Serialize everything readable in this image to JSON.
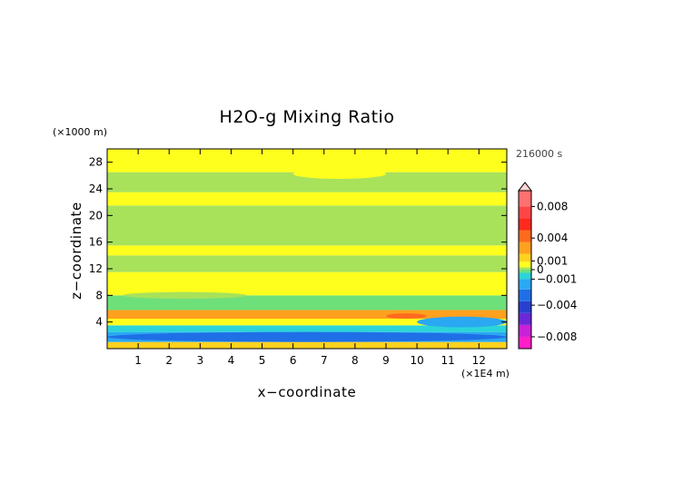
{
  "chart_data": {
    "type": "heatmap",
    "title": "H2O-g Mixing Ratio",
    "xlabel": "x−coordinate",
    "ylabel": "z−coordinate",
    "x_unit_label": "(×1E4 m)",
    "y_unit_label": "(×1000 m)",
    "time_label": "216000 s",
    "xlim": [
      0,
      12.9
    ],
    "ylim": [
      0,
      30
    ],
    "xticks": [
      1,
      2,
      3,
      4,
      5,
      6,
      7,
      8,
      9,
      10,
      11,
      12
    ],
    "yticks": [
      4,
      8,
      12,
      16,
      20,
      24,
      28
    ],
    "grid": false,
    "colorbar": {
      "position": "right",
      "range": [
        -0.01,
        0.01
      ],
      "labels": [
        {
          "text": "0.008",
          "value": 0.008
        },
        {
          "text": "0.004",
          "value": 0.004
        },
        {
          "text": "0.001",
          "value": 0.0011
        },
        {
          "text": "0",
          "value": 0.0
        },
        {
          "text": "−0.001",
          "value": -0.0012
        },
        {
          "text": "−0.004",
          "value": -0.0045
        },
        {
          "text": "−0.008",
          "value": -0.0085
        }
      ],
      "color_stops": [
        {
          "value": -0.01,
          "color": "#ff1ec8"
        },
        {
          "value": -0.0085,
          "color": "#c821d6"
        },
        {
          "value": -0.007,
          "color": "#6a28d8"
        },
        {
          "value": -0.0055,
          "color": "#2a3fd0"
        },
        {
          "value": -0.004,
          "color": "#1f6fe6"
        },
        {
          "value": -0.0025,
          "color": "#2aa8f2"
        },
        {
          "value": -0.0012,
          "color": "#2ad4d8"
        },
        {
          "value": -0.0004,
          "color": "#6ee07a"
        },
        {
          "value": 0.0,
          "color": "#a8e25a"
        },
        {
          "value": 0.0003,
          "color": "#ffff1e"
        },
        {
          "value": 0.001,
          "color": "#ffd21e"
        },
        {
          "value": 0.002,
          "color": "#ffa01e"
        },
        {
          "value": 0.0035,
          "color": "#ff6a1e"
        },
        {
          "value": 0.005,
          "color": "#ff2a1e"
        },
        {
          "value": 0.0065,
          "color": "#ff4646"
        },
        {
          "value": 0.008,
          "color": "#ff7070"
        },
        {
          "value": 0.01,
          "color": "#ffa8a8"
        }
      ]
    },
    "bands": [
      {
        "z_range": [
          0,
          1.0
        ],
        "value": 0.0011,
        "color": "#ffd21e"
      },
      {
        "z_range": [
          1.0,
          2.5
        ],
        "value": -0.0025,
        "color": "#2aa8f2"
      },
      {
        "z_range": [
          2.5,
          3.5
        ],
        "value": -0.0012,
        "color": "#2ad4d8"
      },
      {
        "z_range": [
          3.5,
          4.5
        ],
        "value": 0.0005,
        "color": "#ffff1e"
      },
      {
        "z_range": [
          4.5,
          5.8
        ],
        "value": 0.002,
        "color": "#ffa01e"
      },
      {
        "z_range": [
          5.8,
          8.0
        ],
        "value": -0.0004,
        "color": "#6ee07a"
      },
      {
        "z_range": [
          8.0,
          11.5
        ],
        "value": 0.0003,
        "color": "#ffff1e"
      },
      {
        "z_range": [
          11.5,
          14.0
        ],
        "value": 0.0,
        "color": "#a8e25a"
      },
      {
        "z_range": [
          14.0,
          15.5
        ],
        "value": 0.0003,
        "color": "#ffff1e"
      },
      {
        "z_range": [
          15.5,
          21.5
        ],
        "value": 0.0,
        "color": "#a8e25a"
      },
      {
        "z_range": [
          21.5,
          23.5
        ],
        "value": 0.0003,
        "color": "#ffff1e"
      },
      {
        "z_range": [
          23.5,
          26.5
        ],
        "value": 0.0,
        "color": "#a8e25a"
      },
      {
        "z_range": [
          26.5,
          30
        ],
        "value": 0.0003,
        "color": "#ffff1e"
      }
    ],
    "blobs": [
      {
        "x_range": [
          0,
          3.2
        ],
        "z_range": [
          4.6,
          5.8
        ],
        "value": 0.002,
        "color": "#ffa01e"
      },
      {
        "x_range": [
          9,
          10.3
        ],
        "z_range": [
          4.5,
          5.3
        ],
        "value": 0.0035,
        "color": "#ff6a1e"
      },
      {
        "x_range": [
          0,
          12.9
        ],
        "z_range": [
          1.0,
          2.5
        ],
        "value": -0.004,
        "color": "#1f6fe6"
      },
      {
        "x_range": [
          10,
          12.9
        ],
        "z_range": [
          3.2,
          4.8
        ],
        "value": -0.0025,
        "color": "#2aa8f2"
      },
      {
        "x_range": [
          0.5,
          4.5
        ],
        "z_range": [
          7.5,
          8.5
        ],
        "value": 0.0,
        "color": "#a8e25a"
      },
      {
        "x_range": [
          6,
          9
        ],
        "z_range": [
          25.5,
          27
        ],
        "value": 0.0003,
        "color": "#ffff1e"
      }
    ]
  }
}
